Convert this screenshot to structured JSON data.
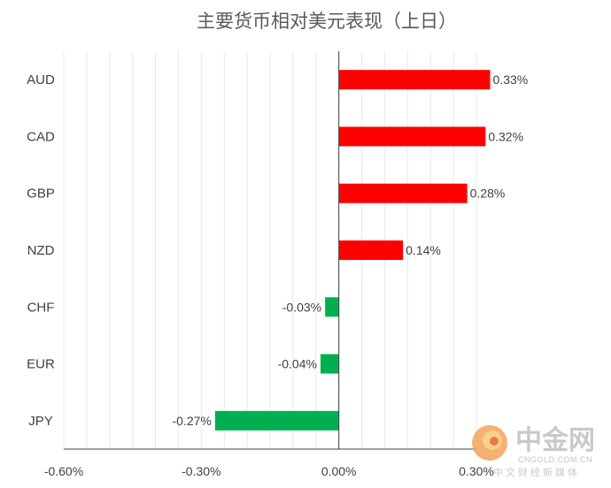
{
  "chart_data": {
    "type": "bar",
    "orientation": "horizontal",
    "title": "主要货币相对美元表现（上日）",
    "categories": [
      "AUD",
      "CAD",
      "GBP",
      "NZD",
      "CHF",
      "EUR",
      "JPY"
    ],
    "values": [
      0.33,
      0.32,
      0.28,
      0.14,
      -0.03,
      -0.04,
      -0.27
    ],
    "data_labels": [
      "0.33%",
      "0.32%",
      "0.28%",
      "0.14%",
      "-0.03%",
      "-0.04%",
      "-0.27%"
    ],
    "xlim": [
      -0.6,
      0.3
    ],
    "xticks": [
      -0.6,
      -0.3,
      0.0,
      0.3
    ],
    "xtick_labels": [
      "-0.60%",
      "-0.30%",
      "0.00%",
      "0.30%"
    ],
    "grid": true,
    "legend": "none",
    "colors": {
      "positive": "#ff0000",
      "negative": "#00b050"
    }
  },
  "watermark": {
    "name": "中金网",
    "domain": "CNGOLD.COM.CN",
    "tagline": "中文财经新媒体",
    "colors": {
      "logo_outer": "#f4a259",
      "logo_inner": "#f7d08a"
    }
  }
}
